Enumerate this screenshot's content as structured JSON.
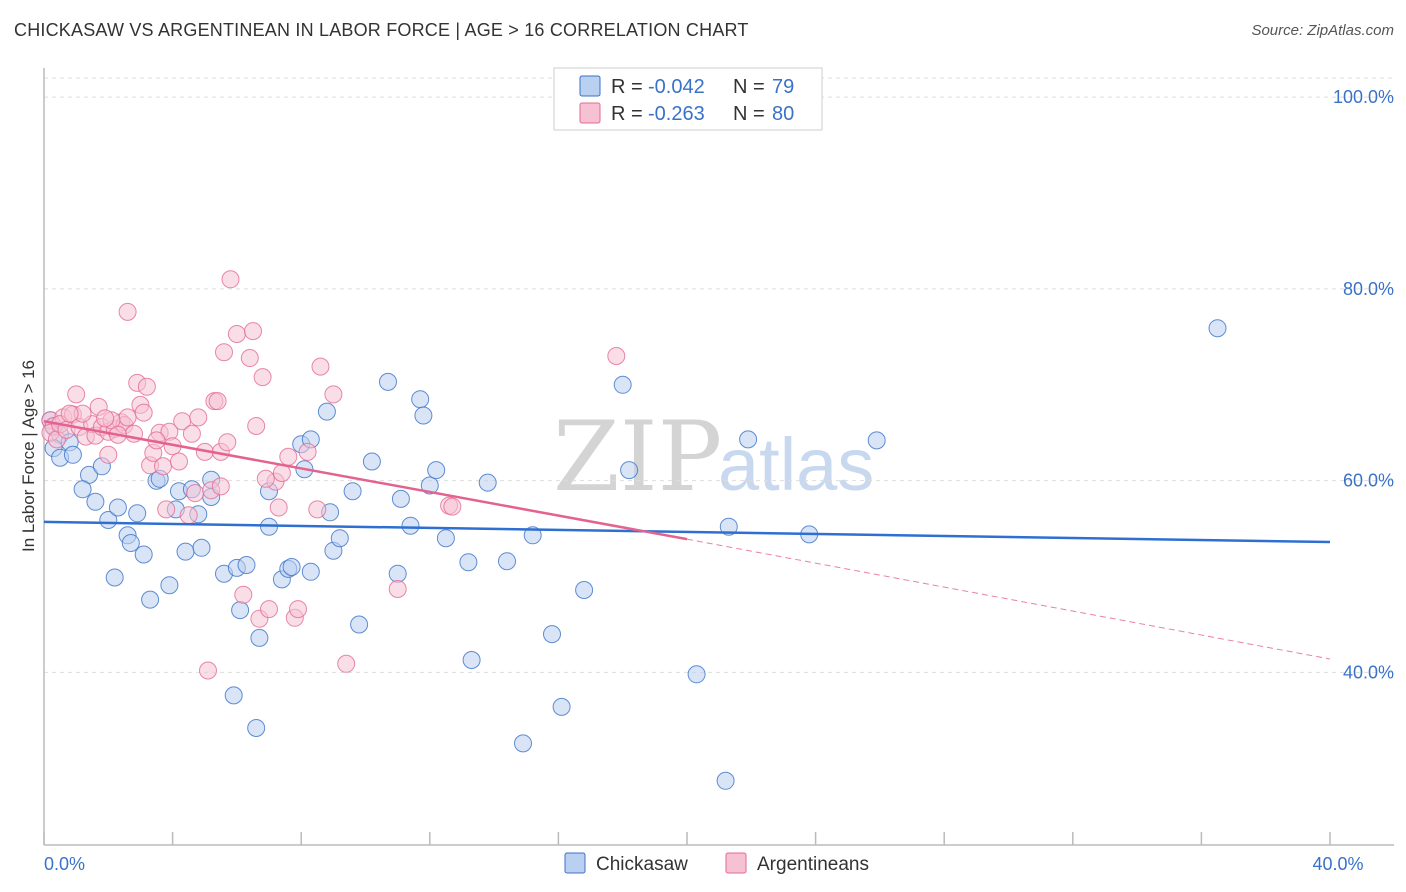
{
  "title": "CHICKASAW VS ARGENTINEAN IN LABOR FORCE | AGE > 16 CORRELATION CHART",
  "source": "Source: ZipAtlas.com",
  "watermark": {
    "zip": "ZIP",
    "atlas": "atlas"
  },
  "colors": {
    "blue": "#3a72c8",
    "blue_fill": "#b9d0f0",
    "blue_line": "#2e6fd1",
    "pink": "#e46a94",
    "pink_fill": "#f6c2d3",
    "pink_line": "#e4628f",
    "grid": "#dddddd"
  },
  "legend": {
    "rows": [
      {
        "r_label": "R =",
        "r_value": "-0.042",
        "n_label": "N =",
        "n_value": "79"
      },
      {
        "r_label": "R =",
        "r_value": "-0.263",
        "n_label": "N =",
        "n_value": "80"
      }
    ]
  },
  "bottom_legend": [
    "Chickasaw",
    "Argentineans"
  ],
  "chart_data": {
    "type": "scatter",
    "title": "CHICKASAW VS ARGENTINEAN IN LABOR FORCE | AGE > 16 CORRELATION CHART",
    "xlabel": "",
    "ylabel": "In Labor Force | Age > 16",
    "xlim": [
      0,
      40
    ],
    "ylim": [
      22,
      102
    ],
    "y_ticks": [
      40,
      60,
      80,
      100
    ],
    "y_tick_labels": [
      "40.0%",
      "60.0%",
      "80.0%",
      "100.0%"
    ],
    "x_tick_labels": [
      "0.0%",
      "40.0%"
    ],
    "x_tick_label_values": [
      0,
      40
    ],
    "x_minor_ticks": [
      0,
      4,
      8,
      12,
      16,
      20,
      24,
      28,
      32,
      36,
      40
    ],
    "grid": true,
    "series": [
      {
        "name": "Chickasaw",
        "r": -0.042,
        "n": 79,
        "trend": {
          "x0": 0,
          "y0": 55.7,
          "x1": 40,
          "y1": 53.6
        },
        "points": [
          [
            0.2,
            66.3
          ],
          [
            0.3,
            65.6
          ],
          [
            0.5,
            64.8
          ],
          [
            0.3,
            63.4
          ],
          [
            0.8,
            64.0
          ],
          [
            0.5,
            62.4
          ],
          [
            0.9,
            62.7
          ],
          [
            1.4,
            60.6
          ],
          [
            1.8,
            61.5
          ],
          [
            1.2,
            59.1
          ],
          [
            1.6,
            57.8
          ],
          [
            2.0,
            55.9
          ],
          [
            2.3,
            57.2
          ],
          [
            2.6,
            54.3
          ],
          [
            2.7,
            53.5
          ],
          [
            2.9,
            56.6
          ],
          [
            3.1,
            52.3
          ],
          [
            2.2,
            49.9
          ],
          [
            3.3,
            47.6
          ],
          [
            3.5,
            60.0
          ],
          [
            3.6,
            60.2
          ],
          [
            3.9,
            49.1
          ],
          [
            4.1,
            57.0
          ],
          [
            4.2,
            58.9
          ],
          [
            4.4,
            52.6
          ],
          [
            4.6,
            59.1
          ],
          [
            4.8,
            56.5
          ],
          [
            4.9,
            53.0
          ],
          [
            5.2,
            58.3
          ],
          [
            5.2,
            60.1
          ],
          [
            5.6,
            50.3
          ],
          [
            6.0,
            50.9
          ],
          [
            6.3,
            51.2
          ],
          [
            6.1,
            46.5
          ],
          [
            6.7,
            43.6
          ],
          [
            5.9,
            37.6
          ],
          [
            6.6,
            34.2
          ],
          [
            7.0,
            55.2
          ],
          [
            7.0,
            58.9
          ],
          [
            7.4,
            49.7
          ],
          [
            7.6,
            50.8
          ],
          [
            7.7,
            51.0
          ],
          [
            8.0,
            63.8
          ],
          [
            8.1,
            61.2
          ],
          [
            8.3,
            64.3
          ],
          [
            8.3,
            50.5
          ],
          [
            8.8,
            67.2
          ],
          [
            8.9,
            56.7
          ],
          [
            9.0,
            52.7
          ],
          [
            9.2,
            54.0
          ],
          [
            9.6,
            58.9
          ],
          [
            9.8,
            45.0
          ],
          [
            10.2,
            62.0
          ],
          [
            10.7,
            70.3
          ],
          [
            11.0,
            50.3
          ],
          [
            11.1,
            58.1
          ],
          [
            11.4,
            55.3
          ],
          [
            11.7,
            68.5
          ],
          [
            11.8,
            66.8
          ],
          [
            12.0,
            59.5
          ],
          [
            12.2,
            61.1
          ],
          [
            12.5,
            54.0
          ],
          [
            13.2,
            51.5
          ],
          [
            13.3,
            41.3
          ],
          [
            13.8,
            59.8
          ],
          [
            14.4,
            51.6
          ],
          [
            14.9,
            32.6
          ],
          [
            15.2,
            54.3
          ],
          [
            15.8,
            44.0
          ],
          [
            16.1,
            36.4
          ],
          [
            16.8,
            48.6
          ],
          [
            18.0,
            70.0
          ],
          [
            18.2,
            61.1
          ],
          [
            20.3,
            39.8
          ],
          [
            21.2,
            28.7
          ],
          [
            21.3,
            55.2
          ],
          [
            21.9,
            64.3
          ],
          [
            23.8,
            54.4
          ],
          [
            25.9,
            64.2
          ],
          [
            36.5,
            75.9
          ]
        ]
      },
      {
        "name": "Argentineans",
        "r": -0.263,
        "n": 80,
        "trend": {
          "x0": 0,
          "y0": 66.2,
          "x1": 20,
          "y1": 53.9,
          "dash_x1": 40,
          "dash_y1": 41.4
        },
        "points": [
          [
            0.2,
            66.3
          ],
          [
            0.3,
            65.7
          ],
          [
            0.2,
            65.0
          ],
          [
            0.4,
            64.3
          ],
          [
            0.6,
            66.6
          ],
          [
            0.5,
            65.9
          ],
          [
            0.7,
            65.3
          ],
          [
            0.9,
            66.9
          ],
          [
            1.0,
            69.0
          ],
          [
            1.1,
            65.6
          ],
          [
            1.3,
            64.6
          ],
          [
            1.5,
            65.9
          ],
          [
            1.6,
            64.7
          ],
          [
            1.7,
            67.7
          ],
          [
            1.8,
            65.6
          ],
          [
            2.0,
            65.1
          ],
          [
            2.0,
            62.7
          ],
          [
            2.2,
            65.4
          ],
          [
            2.4,
            66.1
          ],
          [
            2.5,
            65.8
          ],
          [
            2.6,
            66.6
          ],
          [
            2.6,
            77.6
          ],
          [
            2.8,
            64.9
          ],
          [
            2.9,
            70.2
          ],
          [
            3.0,
            67.9
          ],
          [
            3.1,
            67.1
          ],
          [
            3.2,
            69.8
          ],
          [
            3.3,
            61.6
          ],
          [
            3.4,
            62.9
          ],
          [
            3.6,
            65.0
          ],
          [
            3.7,
            61.5
          ],
          [
            3.8,
            57.0
          ],
          [
            3.9,
            65.1
          ],
          [
            4.0,
            63.6
          ],
          [
            4.2,
            62.0
          ],
          [
            4.3,
            66.2
          ],
          [
            4.5,
            56.4
          ],
          [
            4.7,
            58.7
          ],
          [
            4.8,
            66.6
          ],
          [
            5.0,
            63.0
          ],
          [
            5.1,
            40.2
          ],
          [
            5.2,
            59.0
          ],
          [
            5.3,
            68.3
          ],
          [
            5.4,
            68.3
          ],
          [
            5.5,
            63.0
          ],
          [
            5.6,
            73.4
          ],
          [
            5.7,
            64.0
          ],
          [
            5.8,
            81.0
          ],
          [
            6.0,
            75.3
          ],
          [
            6.2,
            48.1
          ],
          [
            6.4,
            72.8
          ],
          [
            6.5,
            75.6
          ],
          [
            6.6,
            65.7
          ],
          [
            6.7,
            45.6
          ],
          [
            6.8,
            70.8
          ],
          [
            7.0,
            46.6
          ],
          [
            7.2,
            59.9
          ],
          [
            7.4,
            60.8
          ],
          [
            7.6,
            62.5
          ],
          [
            7.8,
            45.7
          ],
          [
            7.9,
            46.6
          ],
          [
            8.2,
            63.0
          ],
          [
            8.5,
            57.0
          ],
          [
            8.6,
            71.9
          ],
          [
            9.0,
            69.0
          ],
          [
            9.4,
            40.9
          ],
          [
            11.0,
            48.7
          ],
          [
            12.6,
            57.4
          ],
          [
            12.7,
            57.3
          ],
          [
            17.8,
            73.0
          ],
          [
            2.1,
            66.3
          ],
          [
            1.2,
            67.0
          ],
          [
            3.5,
            64.2
          ],
          [
            4.6,
            64.9
          ],
          [
            6.9,
            60.2
          ],
          [
            0.8,
            67.0
          ],
          [
            1.9,
            66.5
          ],
          [
            2.3,
            64.8
          ],
          [
            5.5,
            59.4
          ],
          [
            7.3,
            57.2
          ]
        ]
      }
    ]
  }
}
